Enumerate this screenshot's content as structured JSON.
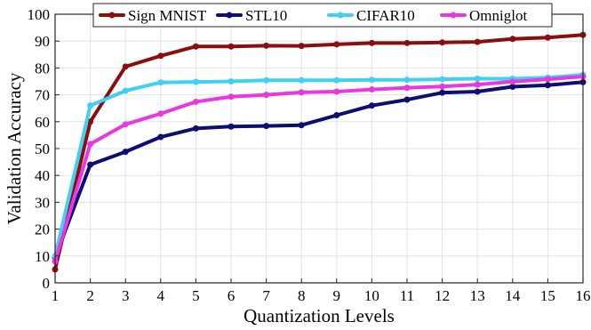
{
  "chart_data": {
    "type": "line",
    "xlabel": "Quantization Levels",
    "ylabel": "Validation Accuracy",
    "x": [
      1,
      2,
      3,
      4,
      5,
      6,
      7,
      8,
      9,
      10,
      11,
      12,
      13,
      14,
      15,
      16
    ],
    "xlim": [
      1,
      16
    ],
    "ylim": [
      0,
      100
    ],
    "yticks": [
      0,
      10,
      20,
      30,
      40,
      50,
      60,
      70,
      80,
      90,
      100
    ],
    "grid": true,
    "legend_position": "top",
    "series": [
      {
        "name": "Sign MNIST",
        "color": "#8b0e0e",
        "values": [
          5,
          60,
          80.5,
          84.5,
          88,
          88,
          88.3,
          88.2,
          88.8,
          89.3,
          89.3,
          89.5,
          89.7,
          90.8,
          91.3,
          92.3
        ]
      },
      {
        "name": "STL10",
        "color": "#0d0d73",
        "values": [
          9.5,
          44,
          48.8,
          54.3,
          57.5,
          58.2,
          58.4,
          58.7,
          62.4,
          66,
          68.2,
          70.8,
          71.2,
          73,
          73.6,
          74.7
        ]
      },
      {
        "name": "CIFAR10",
        "color": "#3fd1f0",
        "values": [
          10,
          66,
          71.5,
          74.6,
          74.8,
          75,
          75.4,
          75.4,
          75.4,
          75.6,
          75.6,
          75.8,
          76,
          76,
          76.4,
          77.5
        ]
      },
      {
        "name": "Omniglot",
        "color": "#e838e0",
        "values": [
          8,
          51.7,
          59,
          63,
          67.4,
          69.3,
          70,
          70.9,
          71.2,
          72,
          72.6,
          73.1,
          73.8,
          74.9,
          75.8,
          76.8
        ]
      }
    ]
  }
}
